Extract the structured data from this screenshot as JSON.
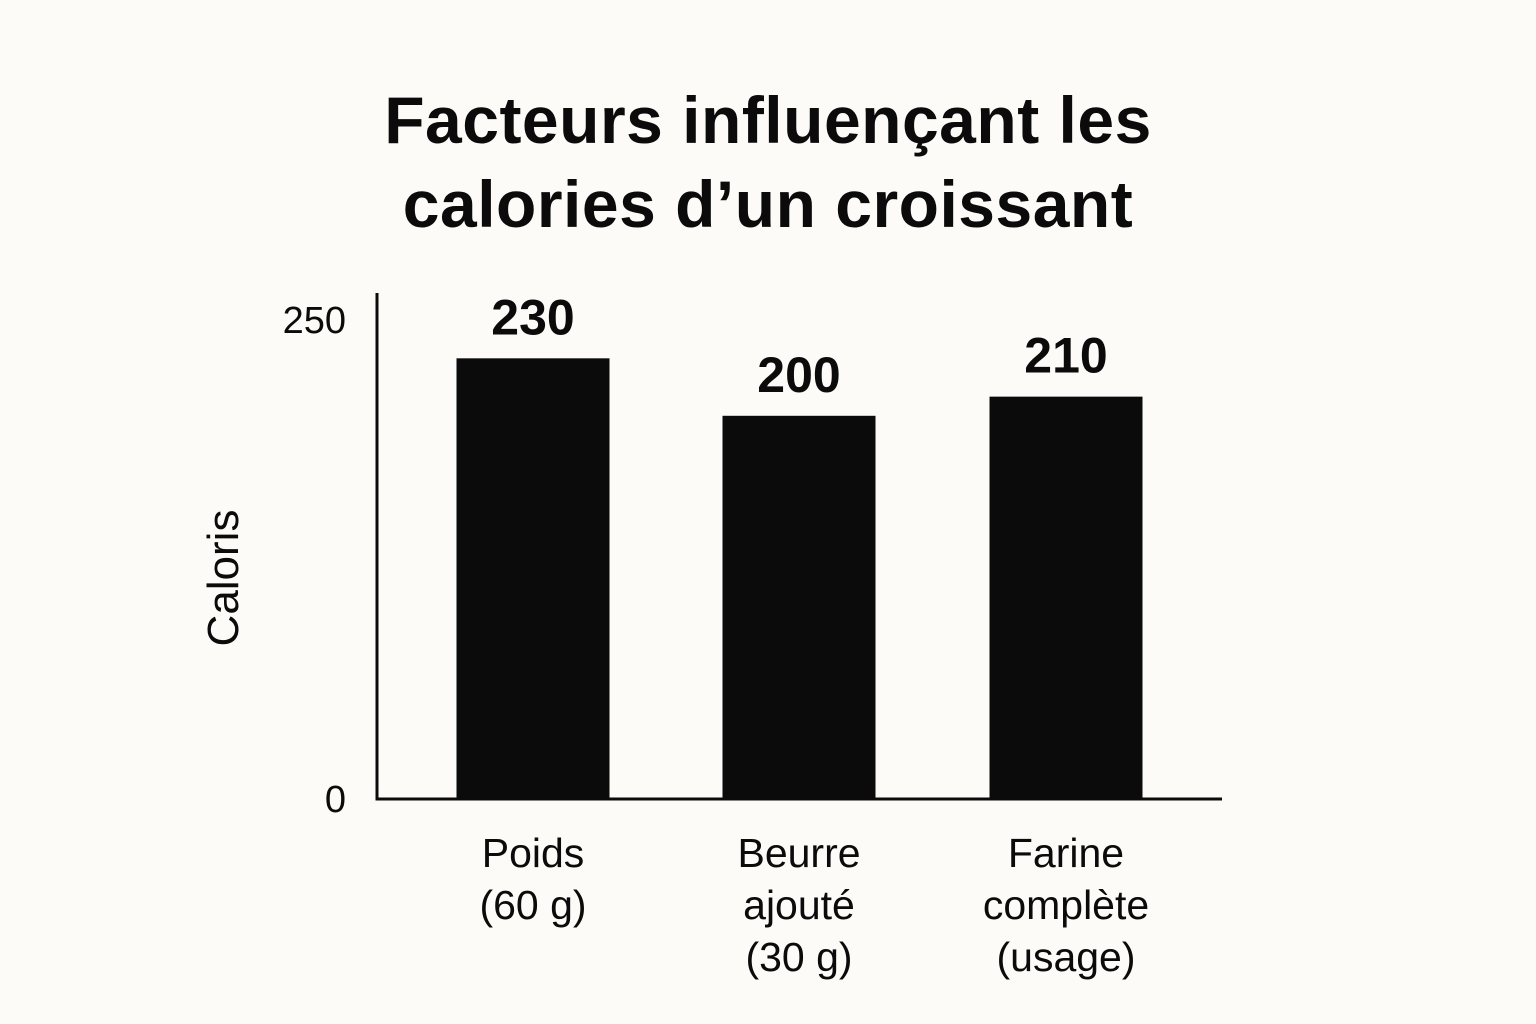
{
  "chart_data": {
    "type": "bar",
    "title_lines": [
      "Facteurs influençant les",
      "calories d’un croissant"
    ],
    "ylabel": "Caloris",
    "xlabel": "",
    "ylim": [
      0,
      250
    ],
    "yticks": [
      0,
      250
    ],
    "grid": false,
    "categories": [
      [
        "Poids",
        "(60 g)"
      ],
      [
        "Beurre",
        "ajouté",
        "(30 g)"
      ],
      [
        "Farine",
        "complète",
        "(usage)"
      ]
    ],
    "values": [
      230,
      200,
      210
    ],
    "data_labels": [
      "230",
      "200",
      "210"
    ],
    "bar_color": "#0b0b0b"
  }
}
